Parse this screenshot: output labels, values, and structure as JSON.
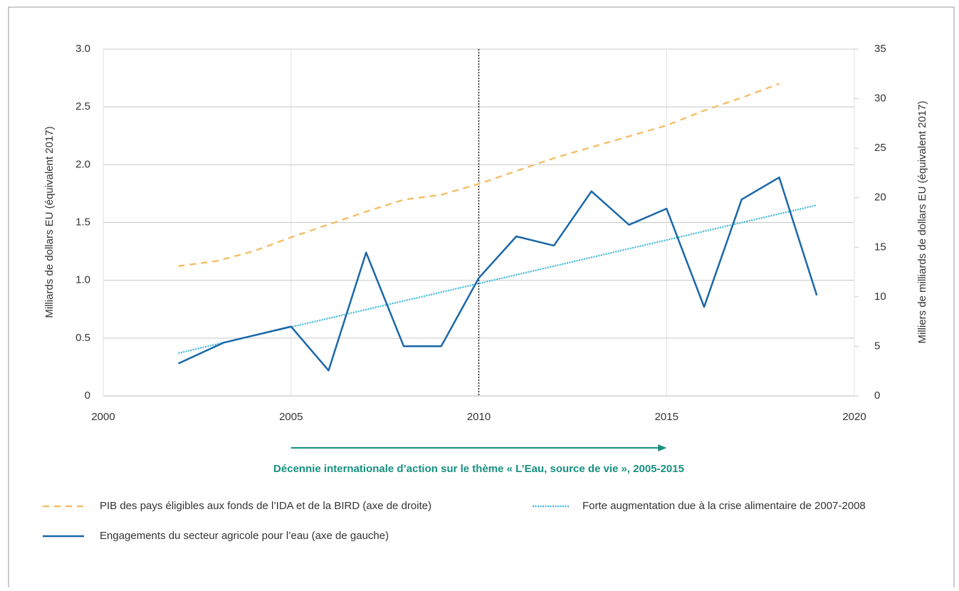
{
  "chart_data": {
    "type": "line",
    "ylabel": "Milliards de dollars EU (équivalent 2017)",
    "y2label": "Milliers de milliards de dollars EU (équivalent 2017)",
    "xlim": [
      2000,
      2020
    ],
    "xticks": [
      2000,
      2005,
      2010,
      2015,
      2020
    ],
    "ylim": [
      0,
      3
    ],
    "yticks": [
      0,
      0.5,
      {
        "value": 1,
        "label": "1.0"
      },
      1.5,
      {
        "value": 2,
        "label": "2.0"
      },
      2.5,
      {
        "value": 3,
        "label": "3.0"
      }
    ],
    "y2lim": [
      0,
      35
    ],
    "y2ticks": [
      0,
      5,
      10,
      15,
      20,
      25,
      30,
      35
    ],
    "grid": true,
    "reference_line_x": 2010,
    "annotation": {
      "text": "Décennie internationale d’action sur le thème « L’Eau, source de vie », 2005-2015",
      "x": [
        2005,
        2015
      ],
      "color": "#17907f"
    },
    "series": [
      {
        "name": "PIB des pays éligibles aux fonds de l’IDA et de la BIRD (axe de droite)",
        "color": "#f5b95a",
        "style": "dashed",
        "axis": "y2",
        "x": [
          2002,
          2003,
          2004,
          2005,
          2006,
          2007,
          2008,
          2009,
          2010,
          2011,
          2012,
          2013,
          2014,
          2015,
          2016,
          2017,
          2018
        ],
        "values": [
          13.1,
          13.6,
          14.6,
          16.0,
          17.3,
          18.6,
          19.8,
          20.3,
          21.4,
          22.7,
          24.0,
          25.1,
          26.2,
          27.3,
          28.8,
          30.1,
          31.5
        ]
      },
      {
        "name": "Forte augmentation due à la crise alimentaire de 2007-2008",
        "color": "#3bb6d6",
        "style": "dotted",
        "x": [
          2002,
          2019
        ],
        "values": [
          0.37,
          1.65
        ]
      },
      {
        "name": "Engagements du secteur agricole pour l’eau (axe de gauche)",
        "color": "#1a67a8",
        "style": "solid",
        "x": [
          2002,
          2003.2,
          2005,
          2006,
          2007,
          2008,
          2009,
          2010,
          2011,
          2012,
          2013,
          2014,
          2015,
          2016,
          2017,
          2018,
          2019
        ],
        "values": [
          0.28,
          0.46,
          0.6,
          0.22,
          1.24,
          0.43,
          0.43,
          1.02,
          1.38,
          1.3,
          1.77,
          1.48,
          1.62,
          0.77,
          1.7,
          1.89,
          0.87
        ]
      }
    ]
  }
}
